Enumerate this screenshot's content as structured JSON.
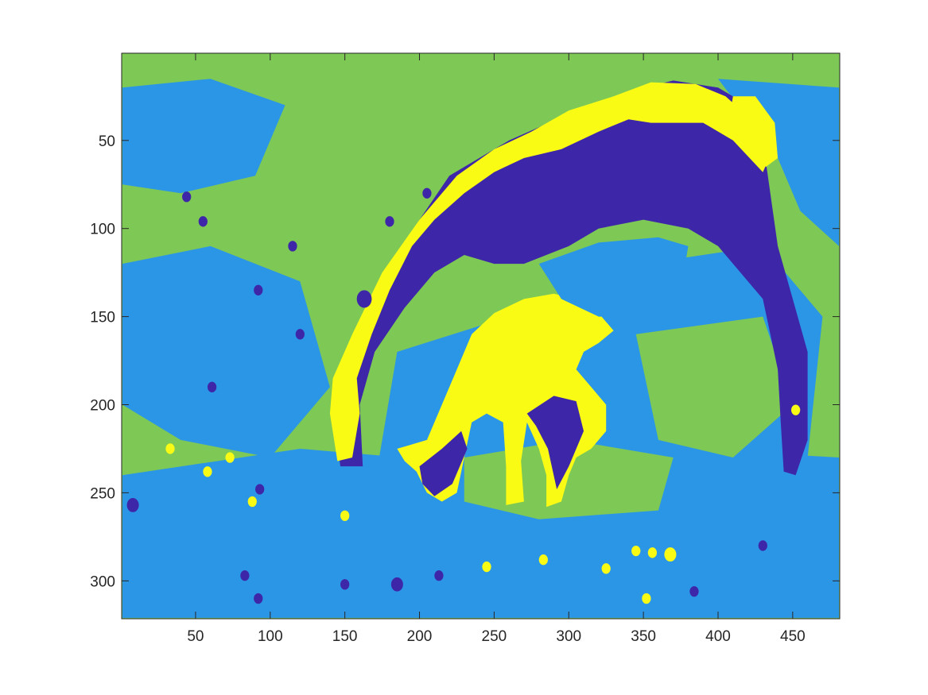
{
  "chart_data": {
    "type": "heatmap",
    "title": "",
    "xlabel": "",
    "ylabel": "",
    "xlim": [
      0.5,
      481.5
    ],
    "ylim": [
      0.5,
      321.5
    ],
    "y_reversed": true,
    "grid": false,
    "xticks": [
      50,
      100,
      150,
      200,
      250,
      300,
      350,
      400,
      450
    ],
    "yticks": [
      50,
      100,
      150,
      200,
      250,
      300
    ],
    "xtick_labels": [
      "50",
      "100",
      "150",
      "200",
      "250",
      "300",
      "350",
      "400",
      "450"
    ],
    "ytick_labels": [
      "50",
      "100",
      "150",
      "200",
      "250",
      "300"
    ],
    "colormap": [
      "#3e26a8",
      "#2c96e6",
      "#7ec855",
      "#f9fb15"
    ],
    "cluster_values": [
      1,
      2,
      3,
      4
    ],
    "background_cluster": 3,
    "regions": [
      {
        "cluster": 2,
        "label": "sky-light-band-left",
        "poly": [
          [
            1,
            20
          ],
          [
            60,
            15
          ],
          [
            110,
            30
          ],
          [
            90,
            70
          ],
          [
            40,
            80
          ],
          [
            1,
            75
          ]
        ]
      },
      {
        "cluster": 2,
        "label": "field-left",
        "poly": [
          [
            1,
            120
          ],
          [
            60,
            110
          ],
          [
            120,
            130
          ],
          [
            140,
            190
          ],
          [
            100,
            230
          ],
          [
            40,
            220
          ],
          [
            1,
            200
          ]
        ]
      },
      {
        "cluster": 2,
        "label": "ground-lower",
        "poly": [
          [
            1,
            240
          ],
          [
            120,
            225
          ],
          [
            260,
            235
          ],
          [
            380,
            225
          ],
          [
            481,
            230
          ],
          [
            481,
            321
          ],
          [
            1,
            321
          ]
        ]
      },
      {
        "cluster": 2,
        "label": "shadow-under-ewe",
        "poly": [
          [
            185,
            170
          ],
          [
            260,
            150
          ],
          [
            350,
            120
          ],
          [
            430,
            110
          ],
          [
            470,
            150
          ],
          [
            460,
            230
          ],
          [
            380,
            250
          ],
          [
            300,
            255
          ],
          [
            220,
            260
          ],
          [
            170,
            245
          ]
        ]
      },
      {
        "cluster": 2,
        "label": "sky-light-band-right",
        "poly": [
          [
            400,
            15
          ],
          [
            481,
            20
          ],
          [
            481,
            110
          ],
          [
            455,
            90
          ],
          [
            440,
            60
          ]
        ]
      },
      {
        "cluster": 3,
        "label": "grass-under-lamb",
        "poly": [
          [
            230,
            230
          ],
          [
            300,
            220
          ],
          [
            370,
            230
          ],
          [
            360,
            260
          ],
          [
            280,
            265
          ],
          [
            230,
            255
          ]
        ]
      },
      {
        "cluster": 3,
        "label": "mid-grass-right",
        "poly": [
          [
            345,
            160
          ],
          [
            430,
            150
          ],
          [
            450,
            200
          ],
          [
            410,
            230
          ],
          [
            360,
            220
          ]
        ]
      },
      {
        "cluster": 1,
        "label": "ewe-body-dark",
        "poly": [
          [
            150,
            180
          ],
          [
            180,
            120
          ],
          [
            220,
            70
          ],
          [
            260,
            50
          ],
          [
            300,
            35
          ],
          [
            340,
            22
          ],
          [
            370,
            16
          ],
          [
            400,
            20
          ],
          [
            420,
            30
          ],
          [
            430,
            50
          ],
          [
            435,
            80
          ],
          [
            440,
            110
          ],
          [
            450,
            140
          ],
          [
            460,
            170
          ],
          [
            460,
            220
          ],
          [
            450,
            225
          ],
          [
            440,
            180
          ],
          [
            430,
            140
          ],
          [
            400,
            110
          ],
          [
            380,
            100
          ],
          [
            350,
            95
          ],
          [
            320,
            100
          ],
          [
            300,
            110
          ],
          [
            270,
            120
          ],
          [
            250,
            120
          ],
          [
            230,
            115
          ],
          [
            210,
            125
          ],
          [
            190,
            145
          ],
          [
            170,
            170
          ],
          [
            160,
            200
          ],
          [
            162,
            235
          ],
          [
            147,
            235
          ],
          [
            142,
            200
          ]
        ]
      },
      {
        "cluster": 4,
        "label": "ewe-back-highlight",
        "poly": [
          [
            142,
            185
          ],
          [
            155,
            160
          ],
          [
            175,
            125
          ],
          [
            200,
            95
          ],
          [
            225,
            70
          ],
          [
            250,
            55
          ],
          [
            275,
            45
          ],
          [
            300,
            33
          ],
          [
            330,
            25
          ],
          [
            355,
            17
          ],
          [
            385,
            18
          ],
          [
            405,
            25
          ],
          [
            425,
            40
          ],
          [
            437,
            55
          ],
          [
            430,
            68
          ],
          [
            410,
            50
          ],
          [
            390,
            40
          ],
          [
            370,
            40
          ],
          [
            355,
            40
          ],
          [
            340,
            38
          ],
          [
            320,
            45
          ],
          [
            295,
            55
          ],
          [
            270,
            60
          ],
          [
            250,
            68
          ],
          [
            230,
            80
          ],
          [
            210,
            95
          ],
          [
            195,
            110
          ],
          [
            180,
            135
          ],
          [
            168,
            160
          ],
          [
            158,
            185
          ],
          [
            160,
            205
          ],
          [
            155,
            230
          ],
          [
            145,
            232
          ],
          [
            140,
            205
          ]
        ]
      },
      {
        "cluster": 4,
        "label": "ewe-head-highlight",
        "poly": [
          [
            410,
            25
          ],
          [
            425,
            25
          ],
          [
            438,
            40
          ],
          [
            440,
            60
          ],
          [
            432,
            65
          ],
          [
            425,
            55
          ],
          [
            415,
            45
          ],
          [
            408,
            35
          ]
        ]
      },
      {
        "cluster": 4,
        "label": "lamb-body",
        "poly": [
          [
            185,
            225
          ],
          [
            205,
            220
          ],
          [
            215,
            200
          ],
          [
            225,
            180
          ],
          [
            235,
            160
          ],
          [
            250,
            148
          ],
          [
            270,
            140
          ],
          [
            290,
            137
          ],
          [
            305,
            140
          ],
          [
            320,
            148
          ],
          [
            330,
            158
          ],
          [
            320,
            165
          ],
          [
            310,
            170
          ],
          [
            305,
            180
          ],
          [
            315,
            190
          ],
          [
            325,
            200
          ],
          [
            325,
            215
          ],
          [
            315,
            225
          ],
          [
            305,
            230
          ],
          [
            300,
            240
          ],
          [
            295,
            255
          ],
          [
            285,
            258
          ],
          [
            285,
            240
          ],
          [
            280,
            225
          ],
          [
            272,
            210
          ],
          [
            268,
            232
          ],
          [
            270,
            255
          ],
          [
            258,
            257
          ],
          [
            258,
            235
          ],
          [
            256,
            210
          ],
          [
            245,
            205
          ],
          [
            235,
            210
          ],
          [
            230,
            230
          ],
          [
            225,
            250
          ],
          [
            215,
            255
          ],
          [
            205,
            250
          ],
          [
            198,
            238
          ],
          [
            190,
            232
          ]
        ]
      },
      {
        "cluster": 1,
        "label": "lamb-shadow-marks",
        "poly": [
          [
            200,
            235
          ],
          [
            215,
            225
          ],
          [
            228,
            215
          ],
          [
            232,
            225
          ],
          [
            222,
            245
          ],
          [
            210,
            252
          ],
          [
            202,
            245
          ]
        ]
      },
      {
        "cluster": 1,
        "label": "lamb-belly-dark",
        "poly": [
          [
            272,
            205
          ],
          [
            290,
            195
          ],
          [
            305,
            198
          ],
          [
            310,
            215
          ],
          [
            300,
            235
          ],
          [
            292,
            248
          ],
          [
            286,
            225
          ],
          [
            278,
            212
          ]
        ]
      },
      {
        "cluster": 1,
        "label": "ewe-hind-leg",
        "poly": [
          [
            440,
            180
          ],
          [
            455,
            185
          ],
          [
            460,
            220
          ],
          [
            452,
            240
          ],
          [
            444,
            238
          ],
          [
            442,
            210
          ]
        ]
      },
      {
        "cluster": 2,
        "label": "ewe-belly-light",
        "poly": [
          [
            280,
            120
          ],
          [
            320,
            108
          ],
          [
            360,
            105
          ],
          [
            380,
            110
          ],
          [
            375,
            135
          ],
          [
            350,
            150
          ],
          [
            320,
            150
          ],
          [
            295,
            140
          ]
        ]
      }
    ],
    "speckles": [
      {
        "cluster": 1,
        "x": 44,
        "y": 82,
        "r": 3
      },
      {
        "cluster": 1,
        "x": 55,
        "y": 96,
        "r": 3
      },
      {
        "cluster": 1,
        "x": 115,
        "y": 110,
        "r": 3
      },
      {
        "cluster": 1,
        "x": 163,
        "y": 140,
        "r": 5
      },
      {
        "cluster": 1,
        "x": 180,
        "y": 96,
        "r": 3
      },
      {
        "cluster": 1,
        "x": 205,
        "y": 80,
        "r": 3
      },
      {
        "cluster": 1,
        "x": 92,
        "y": 135,
        "r": 3
      },
      {
        "cluster": 1,
        "x": 61,
        "y": 190,
        "r": 3
      },
      {
        "cluster": 1,
        "x": 120,
        "y": 160,
        "r": 3
      },
      {
        "cluster": 1,
        "x": 8,
        "y": 257,
        "r": 4
      },
      {
        "cluster": 1,
        "x": 93,
        "y": 248,
        "r": 3
      },
      {
        "cluster": 1,
        "x": 150,
        "y": 302,
        "r": 3
      },
      {
        "cluster": 1,
        "x": 185,
        "y": 302,
        "r": 4
      },
      {
        "cluster": 1,
        "x": 213,
        "y": 297,
        "r": 3
      },
      {
        "cluster": 1,
        "x": 384,
        "y": 306,
        "r": 3
      },
      {
        "cluster": 1,
        "x": 430,
        "y": 280,
        "r": 3
      },
      {
        "cluster": 1,
        "x": 92,
        "y": 310,
        "r": 3
      },
      {
        "cluster": 1,
        "x": 83,
        "y": 297,
        "r": 3
      },
      {
        "cluster": 4,
        "x": 33,
        "y": 225,
        "r": 3
      },
      {
        "cluster": 4,
        "x": 58,
        "y": 238,
        "r": 3
      },
      {
        "cluster": 4,
        "x": 73,
        "y": 230,
        "r": 3
      },
      {
        "cluster": 4,
        "x": 88,
        "y": 255,
        "r": 3
      },
      {
        "cluster": 4,
        "x": 150,
        "y": 263,
        "r": 3
      },
      {
        "cluster": 4,
        "x": 245,
        "y": 292,
        "r": 3
      },
      {
        "cluster": 4,
        "x": 283,
        "y": 288,
        "r": 3
      },
      {
        "cluster": 4,
        "x": 325,
        "y": 293,
        "r": 3
      },
      {
        "cluster": 4,
        "x": 345,
        "y": 283,
        "r": 3
      },
      {
        "cluster": 4,
        "x": 356,
        "y": 284,
        "r": 3
      },
      {
        "cluster": 4,
        "x": 368,
        "y": 285,
        "r": 4
      },
      {
        "cluster": 4,
        "x": 352,
        "y": 310,
        "r": 3
      },
      {
        "cluster": 4,
        "x": 452,
        "y": 203,
        "r": 3
      }
    ]
  }
}
